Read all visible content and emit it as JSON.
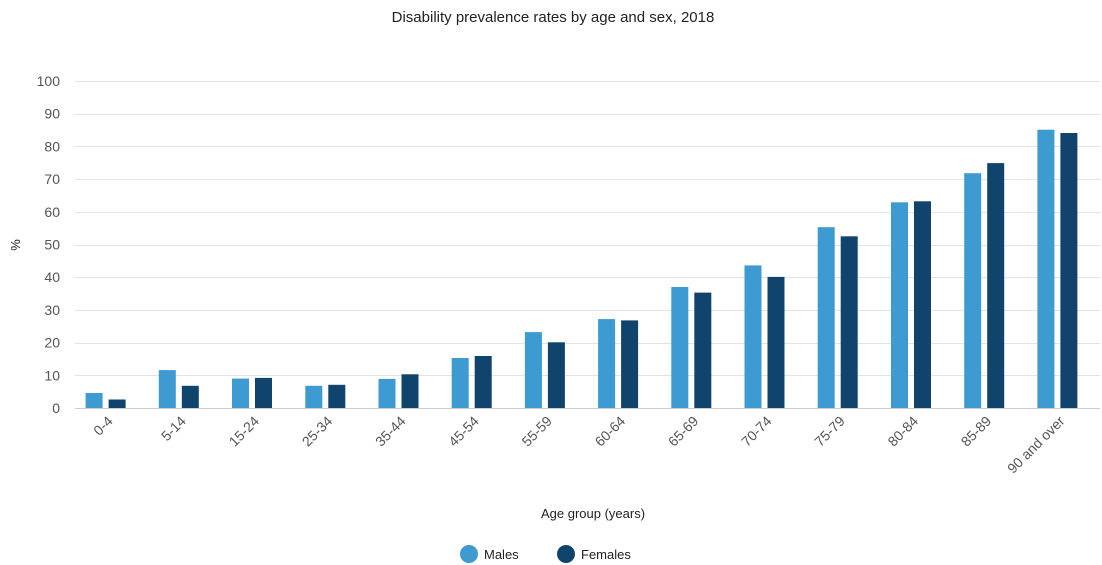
{
  "chart_data": {
    "type": "bar",
    "title": "Disability prevalence rates by age and sex, 2018",
    "xlabel": "Age group (years)",
    "ylabel": "%",
    "ylim": [
      0,
      100
    ],
    "yticks": [
      0,
      10,
      20,
      30,
      40,
      50,
      60,
      70,
      80,
      90,
      100
    ],
    "grid": true,
    "legend_position": "bottom-center",
    "categories": [
      "0-4",
      "5-14",
      "15-24",
      "25-34",
      "35-44",
      "45-54",
      "55-59",
      "60-64",
      "65-69",
      "70-74",
      "75-79",
      "80-84",
      "85-89",
      "90 and over"
    ],
    "series": [
      {
        "name": "Males",
        "color": "#3d9bd1",
        "values": [
          4.6,
          11.6,
          9.0,
          6.8,
          8.9,
          15.3,
          23.2,
          27.2,
          37.0,
          43.6,
          55.3,
          62.9,
          71.8,
          85.1
        ]
      },
      {
        "name": "Females",
        "color": "#11446c",
        "values": [
          2.6,
          6.8,
          9.2,
          7.1,
          10.3,
          15.9,
          20.1,
          26.8,
          35.3,
          40.1,
          52.5,
          63.2,
          74.9,
          84.1
        ]
      }
    ]
  }
}
